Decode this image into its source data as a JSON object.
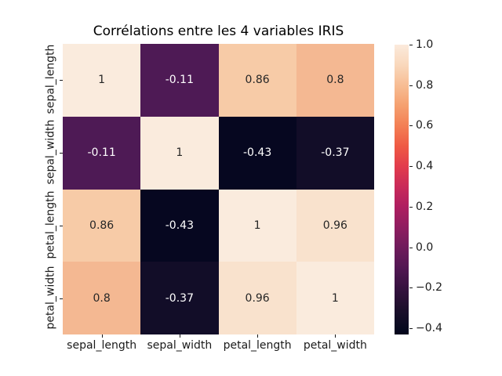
{
  "figure": {
    "background": "#ffffff"
  },
  "chart_data": {
    "type": "heatmap",
    "title": "Corrélations entre les 4 variables IRIS",
    "x_categories": [
      "sepal_length",
      "sepal_width",
      "petal_length",
      "petal_width"
    ],
    "y_categories": [
      "sepal_length",
      "sepal_width",
      "petal_length",
      "petal_width"
    ],
    "matrix": [
      [
        1,
        -0.11,
        0.86,
        0.8
      ],
      [
        -0.11,
        1,
        -0.43,
        -0.37
      ],
      [
        0.86,
        -0.43,
        1,
        0.96
      ],
      [
        0.8,
        -0.37,
        0.96,
        1
      ]
    ],
    "cell_labels": [
      [
        "1",
        "-0.11",
        "0.86",
        "0.8"
      ],
      [
        "-0.11",
        "1",
        "-0.43",
        "-0.37"
      ],
      [
        "0.86",
        "-0.43",
        "1",
        "0.96"
      ],
      [
        "0.8",
        "-0.37",
        "0.96",
        "1"
      ]
    ],
    "cell_colors": [
      [
        "#faebdd",
        "#4e1a55",
        "#f7cba7",
        "#f4b892"
      ],
      [
        "#4e1a55",
        "#faebdd",
        "#060720",
        "#120d28"
      ],
      [
        "#f7cba7",
        "#060720",
        "#faebdd",
        "#f9e2cd"
      ],
      [
        "#f4b892",
        "#120d28",
        "#f9e2cd",
        "#faebdd"
      ]
    ],
    "cell_text_colors": [
      [
        "#262626",
        "#ffffff",
        "#262626",
        "#262626"
      ],
      [
        "#ffffff",
        "#262626",
        "#ffffff",
        "#ffffff"
      ],
      [
        "#262626",
        "#ffffff",
        "#262626",
        "#262626"
      ],
      [
        "#262626",
        "#ffffff",
        "#262626",
        "#262626"
      ]
    ],
    "colormap": "rocket",
    "vmin": -0.43,
    "vmax": 1.0,
    "colorbar_tick_labels": [
      "1.0",
      "0.8",
      "0.6",
      "0.4",
      "0.2",
      "0.0",
      "−0.2",
      "−0.4"
    ],
    "colorbar_tick_values": [
      1.0,
      0.8,
      0.6,
      0.4,
      0.2,
      0.0,
      -0.2,
      -0.4
    ],
    "colorbar_gradient": [
      {
        "pos": 0,
        "color": "#fbeadc"
      },
      {
        "pos": 7,
        "color": "#f9d8bc"
      },
      {
        "pos": 14,
        "color": "#f7bd94"
      },
      {
        "pos": 21,
        "color": "#f5a06f"
      },
      {
        "pos": 28,
        "color": "#f37f54"
      },
      {
        "pos": 35,
        "color": "#ef5a44"
      },
      {
        "pos": 42,
        "color": "#e23c4c"
      },
      {
        "pos": 49,
        "color": "#c92a59"
      },
      {
        "pos": 56,
        "color": "#ae1e60"
      },
      {
        "pos": 63,
        "color": "#8f1d60"
      },
      {
        "pos": 70,
        "color": "#6f1b5b"
      },
      {
        "pos": 77,
        "color": "#521753"
      },
      {
        "pos": 84,
        "color": "#36123f"
      },
      {
        "pos": 91,
        "color": "#1d0f2c"
      },
      {
        "pos": 98,
        "color": "#070a20"
      },
      {
        "pos": 100,
        "color": "#04051c"
      }
    ],
    "legend_position": "right",
    "grid": false
  }
}
